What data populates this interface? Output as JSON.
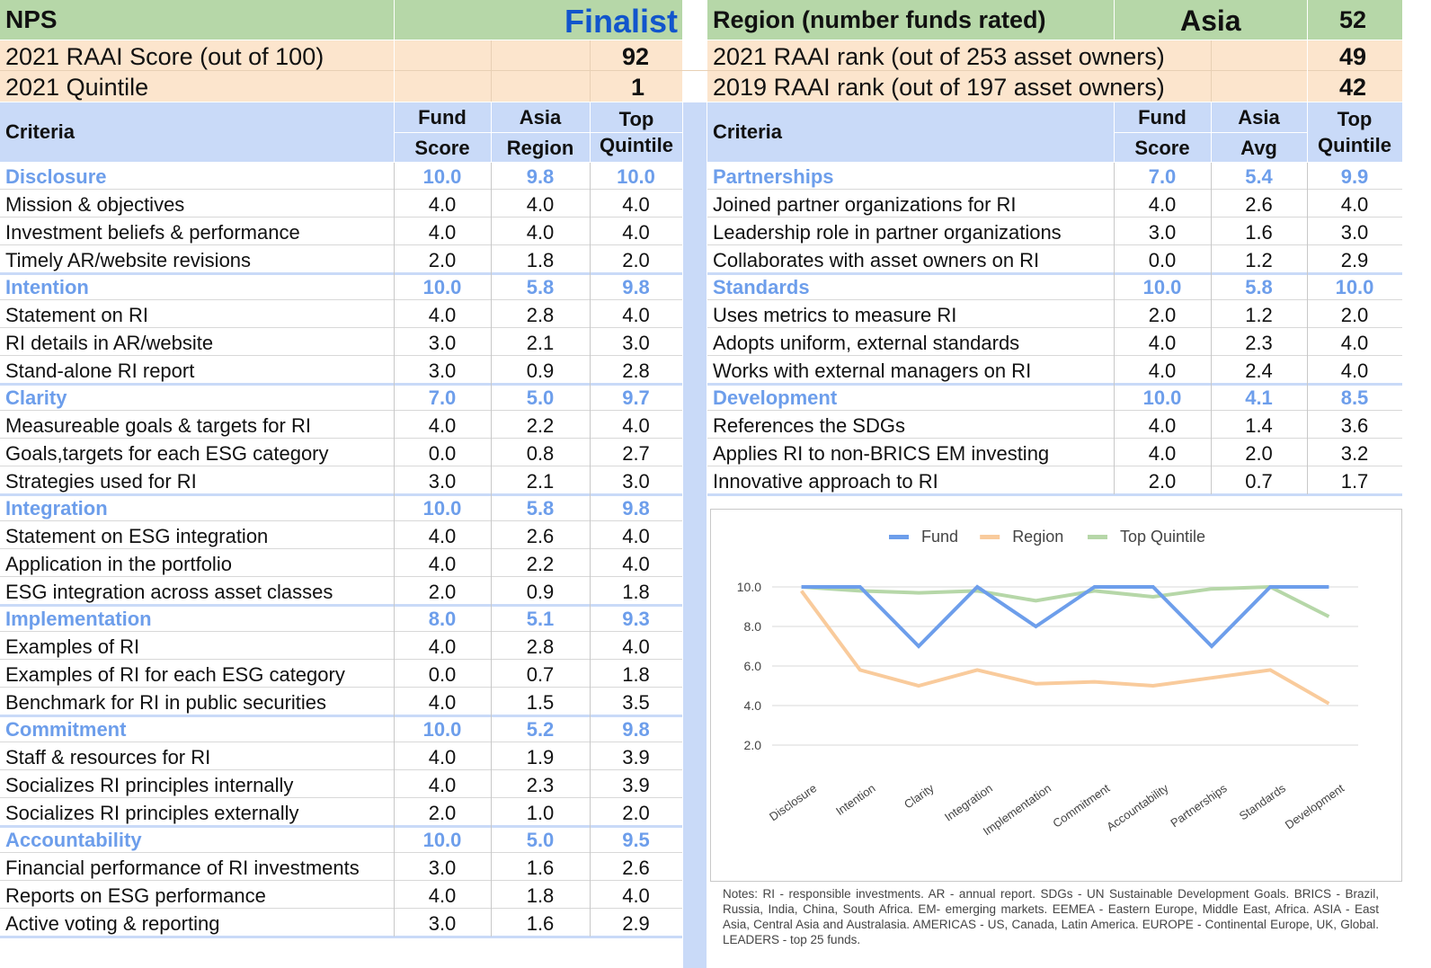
{
  "header": {
    "fund_name": "NPS",
    "award": "Finalist",
    "region_label": "Region (number funds rated)",
    "region_value": "Asia",
    "region_count": "52",
    "score_label": "2021 RAAI Score (out of 100)",
    "score_value": "92",
    "rank2021_label": "2021 RAAI rank (out of 253 asset owners)",
    "rank2021_value": "49",
    "quintile_label": "2021 Quintile",
    "quintile_value": "1",
    "rank2019_label": "2019 RAAI rank (out of 197 asset owners)",
    "rank2019_value": "42",
    "award_color": "#1155cc"
  },
  "left_table": {
    "col_criteria": "Criteria",
    "col_fund_1": "Fund",
    "col_fund_2": "Score",
    "col_region_1": "Asia",
    "col_region_2": "Region",
    "col_top_1": "Top",
    "col_top_2": "Quintile",
    "groups": [
      {
        "name": "Disclosure",
        "fund": "10.0",
        "region": "9.8",
        "top": "10.0",
        "items": [
          {
            "label": "Mission & objectives",
            "fund": "4.0",
            "region": "4.0",
            "top": "4.0"
          },
          {
            "label": "Investment beliefs & performance",
            "fund": "4.0",
            "region": "4.0",
            "top": "4.0"
          },
          {
            "label": "Timely AR/website revisions",
            "fund": "2.0",
            "region": "1.8",
            "top": "2.0"
          }
        ]
      },
      {
        "name": "Intention",
        "fund": "10.0",
        "region": "5.8",
        "top": "9.8",
        "items": [
          {
            "label": "Statement on RI",
            "fund": "4.0",
            "region": "2.8",
            "top": "4.0"
          },
          {
            "label": "RI details in AR/website",
            "fund": "3.0",
            "region": "2.1",
            "top": "3.0"
          },
          {
            "label": "Stand-alone RI report",
            "fund": "3.0",
            "region": "0.9",
            "top": "2.8"
          }
        ]
      },
      {
        "name": "Clarity",
        "fund": "7.0",
        "region": "5.0",
        "top": "9.7",
        "items": [
          {
            "label": "Measureable goals & targets for RI",
            "fund": "4.0",
            "region": "2.2",
            "top": "4.0"
          },
          {
            "label": "Goals,targets for each ESG category",
            "fund": "0.0",
            "region": "0.8",
            "top": "2.7"
          },
          {
            "label": "Strategies used for RI",
            "fund": "3.0",
            "region": "2.1",
            "top": "3.0"
          }
        ]
      },
      {
        "name": "Integration",
        "fund": "10.0",
        "region": "5.8",
        "top": "9.8",
        "items": [
          {
            "label": "Statement on ESG integration",
            "fund": "4.0",
            "region": "2.6",
            "top": "4.0"
          },
          {
            "label": "Application in the portfolio",
            "fund": "4.0",
            "region": "2.2",
            "top": "4.0"
          },
          {
            "label": "ESG integration across asset classes",
            "fund": "2.0",
            "region": "0.9",
            "top": "1.8"
          }
        ]
      },
      {
        "name": "Implementation",
        "fund": "8.0",
        "region": "5.1",
        "top": "9.3",
        "items": [
          {
            "label": "Examples of RI",
            "fund": "4.0",
            "region": "2.8",
            "top": "4.0"
          },
          {
            "label": "Examples of RI for each ESG category",
            "fund": "0.0",
            "region": "0.7",
            "top": "1.8"
          },
          {
            "label": "Benchmark for RI in public securities",
            "fund": "4.0",
            "region": "1.5",
            "top": "3.5"
          }
        ]
      },
      {
        "name": "Commitment",
        "fund": "10.0",
        "region": "5.2",
        "top": "9.8",
        "items": [
          {
            "label": "Staff & resources for RI",
            "fund": "4.0",
            "region": "1.9",
            "top": "3.9"
          },
          {
            "label": "Socializes RI principles internally",
            "fund": "4.0",
            "region": "2.3",
            "top": "3.9"
          },
          {
            "label": "Socializes RI principles externally",
            "fund": "2.0",
            "region": "1.0",
            "top": "2.0"
          }
        ]
      },
      {
        "name": "Accountability",
        "fund": "10.0",
        "region": "5.0",
        "top": "9.5",
        "items": [
          {
            "label": "Financial performance of RI investments",
            "fund": "3.0",
            "region": "1.6",
            "top": "2.6"
          },
          {
            "label": "Reports on ESG performance",
            "fund": "4.0",
            "region": "1.8",
            "top": "4.0"
          },
          {
            "label": "Active voting & reporting",
            "fund": "3.0",
            "region": "1.6",
            "top": "2.9"
          }
        ]
      }
    ]
  },
  "right_table": {
    "col_criteria": "Criteria",
    "col_fund_1": "Fund",
    "col_fund_2": "Score",
    "col_region_1": "Asia",
    "col_region_2": "Avg",
    "col_top_1": "Top",
    "col_top_2": "Quintile",
    "groups": [
      {
        "name": "Partnerships",
        "fund": "7.0",
        "region": "5.4",
        "top": "9.9",
        "items": [
          {
            "label": "Joined partner organizations for RI",
            "fund": "4.0",
            "region": "2.6",
            "top": "4.0"
          },
          {
            "label": "Leadership role in partner organizations",
            "fund": "3.0",
            "region": "1.6",
            "top": "3.0"
          },
          {
            "label": "Collaborates with asset owners on RI",
            "fund": "0.0",
            "region": "1.2",
            "top": "2.9"
          }
        ]
      },
      {
        "name": "Standards",
        "fund": "10.0",
        "region": "5.8",
        "top": "10.0",
        "items": [
          {
            "label": "Uses metrics to measure RI",
            "fund": "2.0",
            "region": "1.2",
            "top": "2.0"
          },
          {
            "label": "Adopts uniform, external standards",
            "fund": "4.0",
            "region": "2.3",
            "top": "4.0"
          },
          {
            "label": "Works with external managers on RI",
            "fund": "4.0",
            "region": "2.4",
            "top": "4.0"
          }
        ]
      },
      {
        "name": "Development",
        "fund": "10.0",
        "region": "4.1",
        "top": "8.5",
        "items": [
          {
            "label": "References the SDGs",
            "fund": "4.0",
            "region": "1.4",
            "top": "3.6"
          },
          {
            "label": "Applies RI to non-BRICS EM investing",
            "fund": "4.0",
            "region": "2.0",
            "top": "3.2"
          },
          {
            "label": "Innovative approach to RI",
            "fund": "2.0",
            "region": "0.7",
            "top": "1.7"
          }
        ]
      }
    ]
  },
  "chart_data": {
    "type": "line",
    "categories": [
      "Disclosure",
      "Intention",
      "Clarity",
      "Integration",
      "Implementation",
      "Commitment",
      "Accountability",
      "Partnerships",
      "Standards",
      "Development"
    ],
    "series": [
      {
        "name": "Fund",
        "color": "#6d9eeb",
        "values": [
          10.0,
          10.0,
          7.0,
          10.0,
          8.0,
          10.0,
          10.0,
          7.0,
          10.0,
          10.0
        ]
      },
      {
        "name": "Region",
        "color": "#f9cb9c",
        "values": [
          9.8,
          5.8,
          5.0,
          5.8,
          5.1,
          5.2,
          5.0,
          5.4,
          5.8,
          4.1
        ]
      },
      {
        "name": "Top Quintile",
        "color": "#b6d7a8",
        "values": [
          10.0,
          9.8,
          9.7,
          9.8,
          9.3,
          9.8,
          9.5,
          9.9,
          10.0,
          8.5
        ]
      }
    ],
    "yticks": [
      "10.0",
      "8.0",
      "6.0",
      "4.0",
      "2.0"
    ],
    "ylim": [
      2,
      10
    ],
    "legend": "top",
    "grid": true
  },
  "notes": "Notes: RI - responsible investments. AR - annual report. SDGs - UN Sustainable Development Goals. BRICS - Brazil, Russia, India, China, South Africa. EM- emerging markets. EEMEA - Eastern Europe, Middle East, Africa. ASIA - East Asia, Central Asia and Australasia. AMERICAS - US, Canada, Latin America. EUROPE - Continental Europe, UK, Global. LEADERS - top 25 funds.",
  "colors": {
    "header_green": "#b6d7a8",
    "header_peach": "#fce5cd",
    "header_blue": "#c9daf8",
    "category_blue": "#6d9eeb"
  }
}
